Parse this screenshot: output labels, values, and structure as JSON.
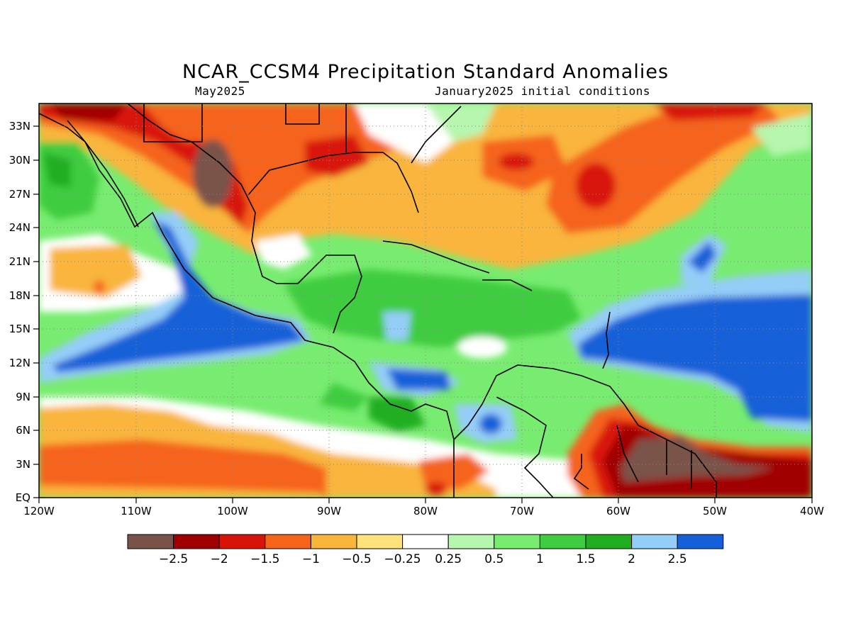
{
  "title": "NCAR_CCSM4 Precipitation Standard Anomalies",
  "subtitle_left": "May2025",
  "subtitle_right": "January2025 initial conditions",
  "map": {
    "lon_labels": [
      "120W",
      "110W",
      "100W",
      "90W",
      "80W",
      "70W",
      "60W",
      "50W",
      "40W"
    ],
    "lat_labels": [
      "EQ",
      "3N",
      "6N",
      "9N",
      "12N",
      "15N",
      "18N",
      "21N",
      "24N",
      "27N",
      "30N",
      "33N"
    ],
    "lon_range": [
      -120,
      -40
    ],
    "lat_range": [
      0,
      35
    ],
    "grid": "dotted"
  },
  "legend": {
    "colors": [
      "#7a5348",
      "#a00000",
      "#d81408",
      "#f5641a",
      "#f9b53c",
      "#ffe27a",
      "#ffffff",
      "#b6f6ae",
      "#78ec70",
      "#3fcc40",
      "#20ae20",
      "#94cdf8",
      "#1360d8"
    ],
    "labels": [
      "−2.5",
      "−2",
      "−1.5",
      "−1",
      "−0.5",
      "−0.25",
      "0.25",
      "0.5",
      "1",
      "1.5",
      "2",
      "2.5"
    ]
  }
}
